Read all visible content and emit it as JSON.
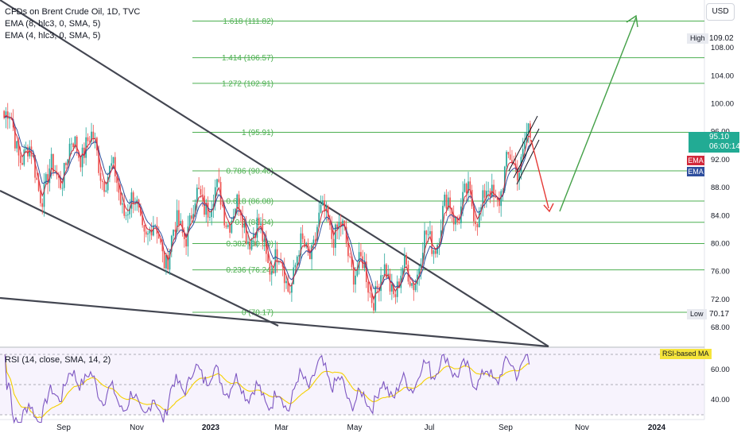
{
  "header": {
    "title": "CFDs on Brent Crude Oil, 1D, TVC",
    "indicators": [
      "EMA (8, hlc3, 0, SMA, 5)",
      "EMA (4, hlc3, 0, SMA, 5)"
    ],
    "currency_button": "USD"
  },
  "price_scale": {
    "ticks": [
      "108.00",
      "104.00",
      "100.00",
      "96.00",
      "92.00",
      "88.00",
      "84.00",
      "80.00",
      "76.00",
      "72.00",
      "68.00"
    ],
    "last_price": "95.10",
    "countdown": "06:00:14",
    "ema_tags": [
      "EMA",
      "EMA"
    ],
    "high_label": "High",
    "high_value": "109.02",
    "low_label": "Low",
    "low_value": "70.17"
  },
  "rsi": {
    "title": "RSI (14, close, SMA, 14, 2)",
    "ticks": [
      "60.00",
      "40.00"
    ],
    "ma_label": "RSI-based MA"
  },
  "time_axis": [
    "Sep",
    "Nov",
    "2023",
    "Mar",
    "May",
    "Jul",
    "Sep",
    "Nov",
    "2024"
  ],
  "fib_levels": [
    {
      "label": "1.618 (111.82)",
      "price": 111.82
    },
    {
      "label": "1.414 (106.57)",
      "price": 106.57
    },
    {
      "label": "1.272 (102.91)",
      "price": 102.91
    },
    {
      "label": "1 (95.91)",
      "price": 95.91
    },
    {
      "label": "0.786 (90.40)",
      "price": 90.4
    },
    {
      "label": "0.618 (86.08)",
      "price": 86.08
    },
    {
      "label": "0.5 (83.04)",
      "price": 83.04
    },
    {
      "label": "0.382 (80.00)",
      "price": 80.0
    },
    {
      "label": "0.236 (76.24)",
      "price": 76.24
    },
    {
      "label": "0 (70.17)",
      "price": 70.17
    }
  ],
  "colors": {
    "up": "#26a69a",
    "down": "#ef5350",
    "fib": "#4caf50",
    "ema_fast": "#d1293b",
    "ema_slow": "#2f4f9e",
    "rsi_line": "#7e57c2",
    "rsi_ma": "#f5d000",
    "trendline": "#434651"
  },
  "chart_data": {
    "type": "candlestick",
    "symbol": "CFDs on Brent Crude Oil",
    "interval": "1D",
    "ylim": [
      66,
      112
    ],
    "series_anchors": [
      {
        "month": "Aug 2022",
        "close": 98
      },
      {
        "month": "Sep 2022",
        "close": 88
      },
      {
        "month": "Oct 2022",
        "close": 95
      },
      {
        "month": "Nov 2022",
        "close": 86
      },
      {
        "month": "Dec 2022",
        "close": 79
      },
      {
        "month": "Jan 2023",
        "close": 87
      },
      {
        "month": "Feb 2023",
        "close": 83
      },
      {
        "month": "Mar 2023",
        "close": 75
      },
      {
        "month": "Apr 2023",
        "close": 84
      },
      {
        "month": "May 2023",
        "close": 74
      },
      {
        "month": "Jun 2023",
        "close": 75
      },
      {
        "month": "Jul 2023",
        "close": 85
      },
      {
        "month": "Aug 2023",
        "close": 86
      },
      {
        "month": "Sep 2023",
        "close": 95.1
      }
    ],
    "rsi_range": [
      25,
      70
    ]
  }
}
